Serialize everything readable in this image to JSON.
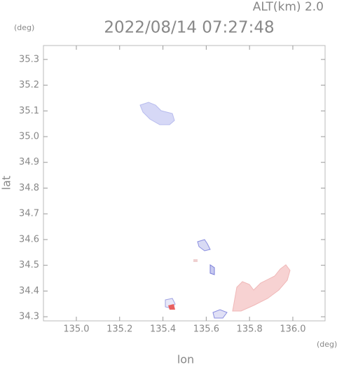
{
  "chart_data": {
    "type": "map",
    "title": "2022/08/14 07:27:48",
    "subtitle": "ALT(km) 2.0",
    "y_unit": "(deg)",
    "x_unit": "(deg)",
    "xlabel": "lon",
    "ylabel": "lat",
    "xlim": [
      134.848,
      136.149
    ],
    "ylim": [
      34.284,
      35.354
    ],
    "xticks": [
      {
        "value": 135.0,
        "label": "135.0"
      },
      135.2,
      135.4,
      135.6,
      135.8,
      {
        "value": 136.0,
        "label": "136.0"
      }
    ],
    "yticks": [
      34.3,
      34.4,
      34.5,
      34.6,
      34.7,
      34.8,
      34.9,
      {
        "value": 35.0,
        "label": "35.0"
      },
      35.1,
      35.2,
      35.3
    ]
  }
}
